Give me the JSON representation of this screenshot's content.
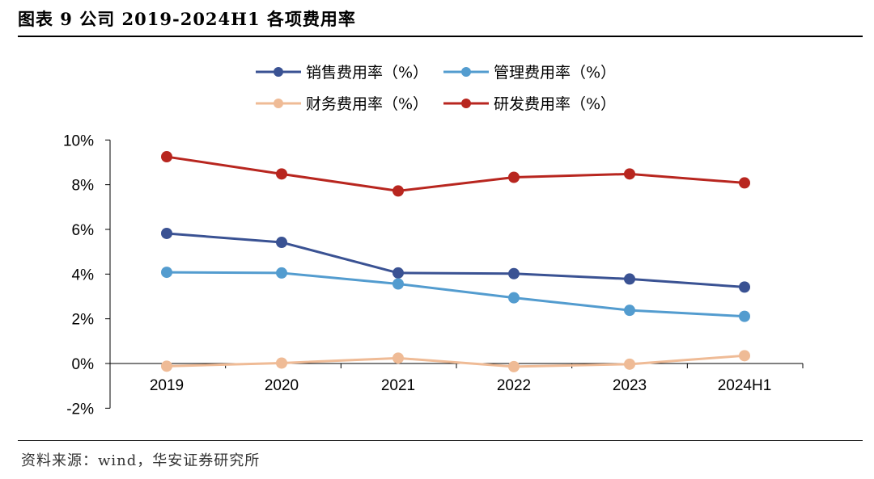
{
  "title": "图表 9 公司 2019-2024H1 各项费用率",
  "source": "资料来源：wind，华安证券研究所",
  "chart_data": {
    "type": "line",
    "categories": [
      "2019",
      "2020",
      "2021",
      "2022",
      "2023",
      "2024H1"
    ],
    "y_tick_labels": [
      "10%",
      "8%",
      "6%",
      "4%",
      "2%",
      "0%",
      "-2%"
    ],
    "ylim": [
      -2,
      10
    ],
    "grid": false,
    "legend_position": "top",
    "series": [
      {
        "name": "销售费用率（%）",
        "color": "#3a5293",
        "values": [
          5.82,
          5.42,
          4.05,
          4.02,
          3.78,
          3.42
        ]
      },
      {
        "name": "管理费用率（%）",
        "color": "#539ccf",
        "values": [
          4.08,
          4.05,
          3.56,
          2.94,
          2.38,
          2.11
        ]
      },
      {
        "name": "财务费用率（%）",
        "color": "#efbb96",
        "values": [
          -0.12,
          0.02,
          0.24,
          -0.14,
          -0.03,
          0.35
        ]
      },
      {
        "name": "研发费用率（%）",
        "color": "#b8261f",
        "values": [
          9.25,
          8.48,
          7.72,
          8.33,
          8.48,
          8.08
        ]
      }
    ]
  }
}
